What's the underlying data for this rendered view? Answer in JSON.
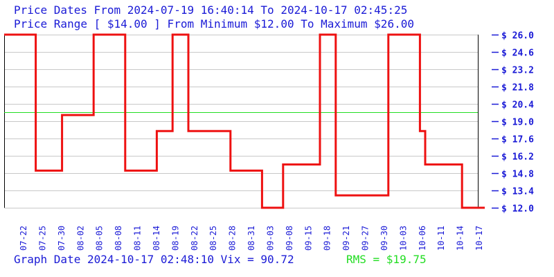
{
  "header": {
    "line1": "Price Dates From 2024-07-19 16:40:14 To 2024-10-17 02:45:25",
    "line2": "Price Range [ $14.00 ] From Minimum $12.00 To Maximum $26.00"
  },
  "footer": {
    "graph_info": "Graph Date 2024-10-17 02:48:10 Vix = 90.72",
    "rms_label": "RMS = $19.75"
  },
  "colors": {
    "text_blue": "#1a1ad6",
    "price_line": "#ee1111",
    "rms_line": "#22dd22",
    "grid": "#c8c8c8",
    "axis": "#000000"
  },
  "chart_data": {
    "type": "line",
    "step": true,
    "y_currency": "$",
    "ylim": [
      12.0,
      26.0
    ],
    "y_ticks": [
      26.0,
      24.6,
      23.2,
      21.8,
      20.4,
      19.0,
      17.6,
      16.2,
      14.8,
      13.4,
      12.0
    ],
    "y_tick_labels": [
      "$ 26.0",
      "$ 24.6",
      "$ 23.2",
      "$ 21.8",
      "$ 20.4",
      "$ 19.0",
      "$ 17.6",
      "$ 16.2",
      "$ 14.8",
      "$ 13.4",
      "$ 12.0"
    ],
    "x_tick_labels": [
      "07-22",
      "07-25",
      "07-30",
      "08-02",
      "08-05",
      "08-08",
      "08-11",
      "08-14",
      "08-19",
      "08-22",
      "08-25",
      "08-28",
      "08-31",
      "09-03",
      "09-08",
      "09-15",
      "09-18",
      "09-21",
      "09-27",
      "09-30",
      "10-03",
      "10-06",
      "10-11",
      "10-14",
      "10-17"
    ],
    "rms": 19.75,
    "grid": true,
    "series": [
      {
        "x": [
          "07-19",
          "07-25",
          "07-30",
          "08-05",
          "08-11",
          "08-17",
          "08-20",
          "08-23",
          "08-31",
          "09-06",
          "09-10",
          "09-17",
          "09-20",
          "09-30",
          "10-06",
          "10-07",
          "10-14",
          "10-17"
        ],
        "values": [
          26.0,
          15.0,
          19.5,
          26.0,
          15.0,
          18.2,
          26.0,
          18.2,
          15.0,
          12.0,
          15.5,
          26.0,
          13.0,
          26.0,
          18.2,
          15.5,
          12.0,
          12.0
        ]
      }
    ]
  }
}
